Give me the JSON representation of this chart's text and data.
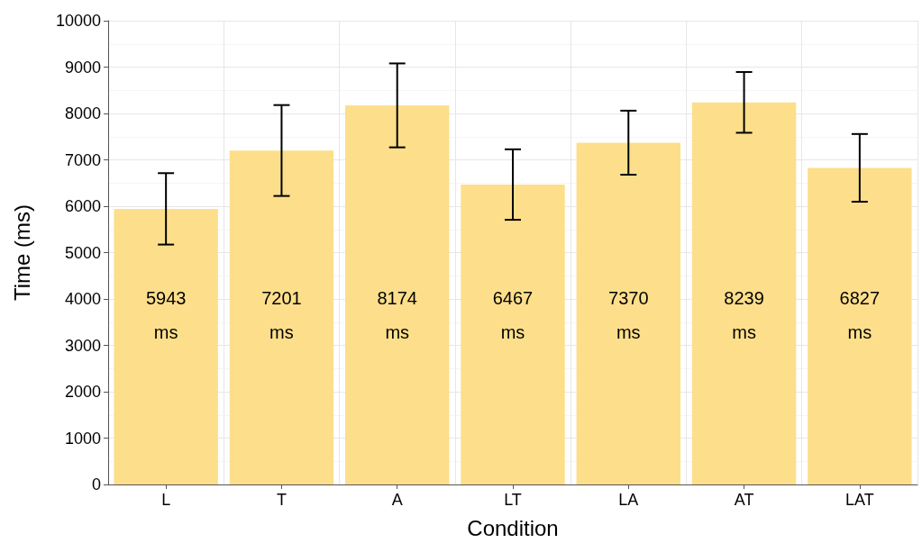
{
  "chart_data": {
    "type": "bar",
    "xlabel": "Condition",
    "ylabel": "Time (ms)",
    "categories": [
      "L",
      "T",
      "A",
      "LT",
      "LA",
      "AT",
      "LAT"
    ],
    "values": [
      5943,
      7201,
      8174,
      6467,
      7370,
      8239,
      6827
    ],
    "value_labels": [
      "5943 ms",
      "7201 ms",
      "8174 ms",
      "6467 ms",
      "7370 ms",
      "8239 ms",
      "6827 ms"
    ],
    "errors": [
      770,
      980,
      905,
      760,
      690,
      655,
      730
    ],
    "color": "#fddf8b",
    "ylim": [
      0,
      10000
    ],
    "yticks": [
      0,
      1000,
      2000,
      3000,
      4000,
      5000,
      6000,
      7000,
      8000,
      9000,
      10000
    ],
    "grid": true
  }
}
